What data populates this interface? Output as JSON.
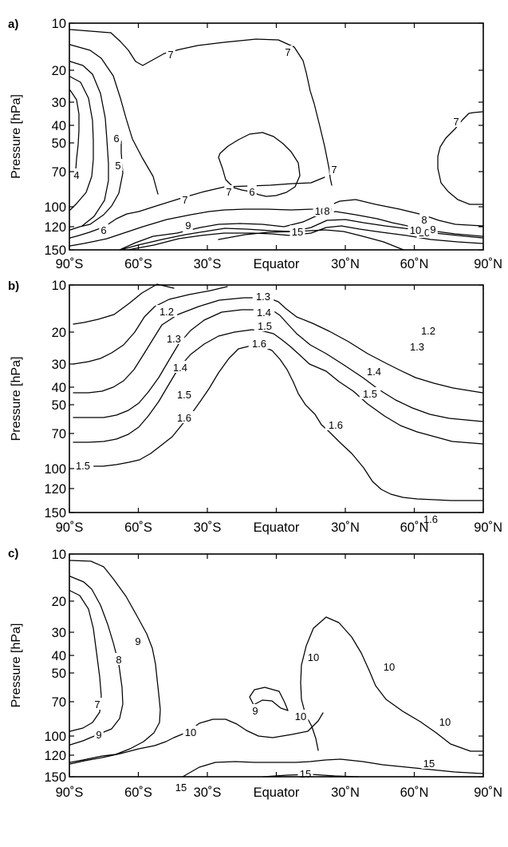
{
  "chart_data": [
    {
      "type": "contour",
      "panel_label": "a)",
      "ylabel": "Pressure [hPa]",
      "x_ticks": [
        "90˚S",
        "60˚S",
        "30˚S",
        "Equator",
        "30˚N",
        "60˚N",
        "90˚N"
      ],
      "y_ticks": [
        "10",
        "20",
        "30",
        "40",
        "50",
        "70",
        "100",
        "120",
        "150"
      ],
      "y_scale": "log",
      "ylim_hPa": [
        150,
        10
      ],
      "xlim_lat": [
        -90,
        90
      ],
      "contour_labels": [
        "7",
        "7",
        "6",
        "5",
        "4",
        "6",
        "7",
        "7",
        "6",
        "7",
        "8",
        "9",
        "10",
        "8",
        "10",
        "9",
        "8",
        "10",
        "9",
        "15",
        "7"
      ]
    },
    {
      "type": "contour",
      "panel_label": "b)",
      "ylabel": "Pressure [hPa]",
      "x_ticks": [
        "90˚S",
        "60˚S",
        "30˚S",
        "Equator",
        "30˚N",
        "60˚N",
        "90˚N"
      ],
      "y_ticks": [
        "10",
        "20",
        "30",
        "40",
        "50",
        "70",
        "100",
        "120",
        "150"
      ],
      "y_scale": "log",
      "ylim_hPa": [
        150,
        10
      ],
      "xlim_lat": [
        -90,
        90
      ],
      "contour_labels": [
        "1.2",
        "1.3",
        "1.4",
        "1.5",
        "1.6",
        "1.5",
        "1.3",
        "1.4",
        "1.5",
        "1.6",
        "1.2",
        "1.3",
        "1.4",
        "1.5",
        "1.6",
        "1.6"
      ]
    },
    {
      "type": "contour",
      "panel_label": "c)",
      "ylabel": "Pressure [hPa]",
      "x_ticks": [
        "90˚S",
        "60˚S",
        "30˚S",
        "Equator",
        "30˚N",
        "60˚N",
        "90˚N"
      ],
      "y_ticks": [
        "10",
        "20",
        "30",
        "40",
        "50",
        "70",
        "100",
        "120",
        "150"
      ],
      "y_scale": "log",
      "ylim_hPa": [
        150,
        10
      ],
      "xlim_lat": [
        -90,
        90
      ],
      "contour_labels": [
        "9",
        "8",
        "7",
        "9",
        "10",
        "9",
        "10",
        "10",
        "10",
        "10",
        "15",
        "15",
        "15"
      ]
    }
  ]
}
